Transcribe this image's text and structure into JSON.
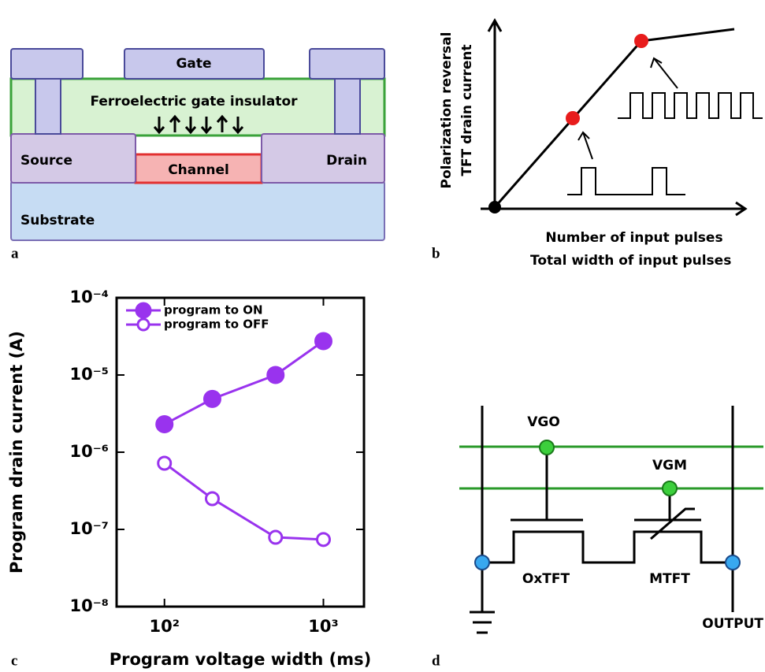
{
  "panel_a": {
    "letter": "a",
    "gate": "Gate",
    "insulator": "Ferroelectric gate insulator",
    "source": "Source",
    "channel": "Channel",
    "drain": "Drain",
    "substrate": "Substrate"
  },
  "panel_b": {
    "letter": "b",
    "y_label": [
      "Polarization reversal",
      "TFT drain current"
    ],
    "x_label": [
      "Number of input pulses",
      "Total width of input pulses"
    ]
  },
  "panel_c": {
    "letter": "c"
  },
  "panel_d": {
    "letter": "d",
    "vgo": "VGO",
    "vgm": "VGM",
    "oxtft": "OxTFT",
    "mtft": "MTFT",
    "output": "OUTPUT"
  },
  "chart_data": {
    "type": "line",
    "x_label": "Program voltage width (ms)",
    "y_label": "Program drain current (A)",
    "x": [
      100,
      200,
      500,
      1000
    ],
    "series": [
      {
        "name": "program to ON",
        "color": "#9933ee",
        "marker": "filled",
        "values": [
          2.3e-06,
          4.9e-06,
          1e-05,
          2.75e-05
        ]
      },
      {
        "name": "program to OFF",
        "color": "#9933ee",
        "marker": "open",
        "values": [
          7.2e-07,
          2.5e-07,
          7.9e-08,
          7.4e-08
        ]
      }
    ],
    "x_scale": "log",
    "y_scale": "log",
    "xlim": [
      50,
      1800
    ],
    "ylim": [
      1e-08,
      0.0001
    ],
    "xticks": [
      {
        "value": 100,
        "label": "10²"
      },
      {
        "value": 1000,
        "label": "10³"
      }
    ],
    "yticks": [
      {
        "value": 1e-08,
        "label": "10⁻⁸"
      },
      {
        "value": 1e-07,
        "label": "10⁻⁷"
      },
      {
        "value": 1e-06,
        "label": "10⁻⁶"
      },
      {
        "value": 1e-05,
        "label": "10⁻⁵"
      },
      {
        "value": 0.0001,
        "label": "10⁻⁴"
      }
    ],
    "legend": "upper left"
  }
}
